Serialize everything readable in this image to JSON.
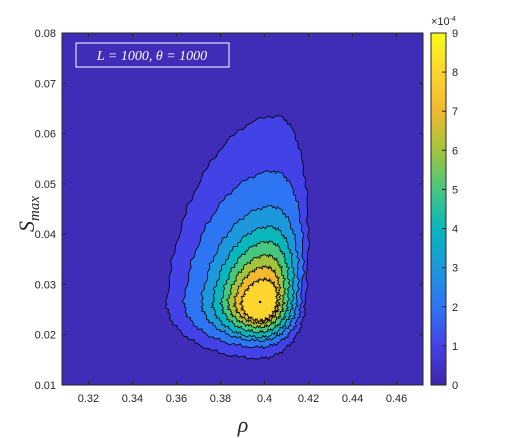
{
  "chart_data": {
    "type": "heatmap",
    "subtype": "filled-contour",
    "xlabel": "ρ",
    "ylabel_main": "S",
    "ylabel_sub": "max",
    "xlim": [
      0.308,
      0.472
    ],
    "ylim": [
      0.01,
      0.08
    ],
    "x_ticks": [
      "0.32",
      "0.34",
      "0.36",
      "0.38",
      "0.4",
      "0.42",
      "0.44",
      "0.46"
    ],
    "x_tick_values": [
      0.32,
      0.34,
      0.36,
      0.38,
      0.4,
      0.42,
      0.44,
      0.46
    ],
    "y_ticks": [
      "0.01",
      "0.02",
      "0.03",
      "0.04",
      "0.05",
      "0.06",
      "0.07",
      "0.08"
    ],
    "y_tick_values": [
      0.01,
      0.02,
      0.03,
      0.04,
      0.05,
      0.06,
      0.07,
      0.08
    ],
    "annotation": "L = 1000, θ = 1000",
    "peak": {
      "x": 0.398,
      "y": 0.0265,
      "z": 9.0
    },
    "contours": [
      {
        "level": 0.5,
        "top": 0.0635,
        "bottom": 0.0153,
        "left": 0.3555,
        "right": 0.4185
      },
      {
        "level": 1.5,
        "top": 0.0525,
        "bottom": 0.0175,
        "left": 0.3635,
        "right": 0.4165
      },
      {
        "level": 2.5,
        "top": 0.0455,
        "bottom": 0.0188,
        "left": 0.3715,
        "right": 0.4145
      },
      {
        "level": 3.5,
        "top": 0.0415,
        "bottom": 0.0195,
        "left": 0.3765,
        "right": 0.4125
      },
      {
        "level": 4.5,
        "top": 0.0385,
        "bottom": 0.0205,
        "left": 0.3805,
        "right": 0.4105
      },
      {
        "level": 5.5,
        "top": 0.0358,
        "bottom": 0.0215,
        "left": 0.3835,
        "right": 0.4085
      },
      {
        "level": 6.5,
        "top": 0.0335,
        "bottom": 0.0223,
        "left": 0.3865,
        "right": 0.4065
      },
      {
        "level": 7.5,
        "top": 0.031,
        "bottom": 0.0228,
        "left": 0.3895,
        "right": 0.4055
      }
    ],
    "colorbar": {
      "exponent_label": "×10",
      "exponent_power": "-4",
      "range": [
        0,
        9
      ],
      "ticks": [
        "0",
        "1",
        "2",
        "3",
        "4",
        "5",
        "6",
        "7",
        "8",
        "9"
      ],
      "tick_values": [
        0,
        1,
        2,
        3,
        4,
        5,
        6,
        7,
        8,
        9
      ],
      "colors": [
        "#3e26a8",
        "#4342e6",
        "#2e75f3",
        "#1d98dc",
        "#08b6bc",
        "#45c780",
        "#a3c43c",
        "#f0b930",
        "#fdd52f",
        "#f9fb15"
      ]
    }
  }
}
